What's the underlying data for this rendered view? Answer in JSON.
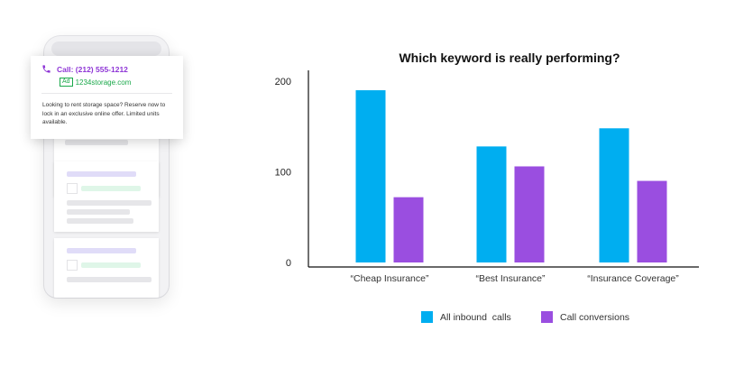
{
  "ad": {
    "call_text": "Call: (212) 555-1212",
    "badge": "Ad",
    "url": "1234storage.com",
    "description": "Looking to rent storage space? Reserve now to lock in an exclusive online offer. Limited units available."
  },
  "chart_data": {
    "type": "bar",
    "title": "Which keyword is really performing?",
    "categories": [
      "“Cheap Insurance”",
      "“Best Insurance”",
      "“Insurance Coverage”"
    ],
    "series": [
      {
        "name": "All inbound  calls",
        "color": "#00aef0",
        "values": [
          190,
          128,
          148
        ]
      },
      {
        "name": "Call conversions",
        "color": "#9a4ee0",
        "values": [
          72,
          106,
          90
        ]
      }
    ],
    "yticks": [
      0,
      100,
      200
    ],
    "ylim": [
      0,
      225
    ],
    "xlabel": "",
    "ylabel": "",
    "legend": "bottom"
  }
}
